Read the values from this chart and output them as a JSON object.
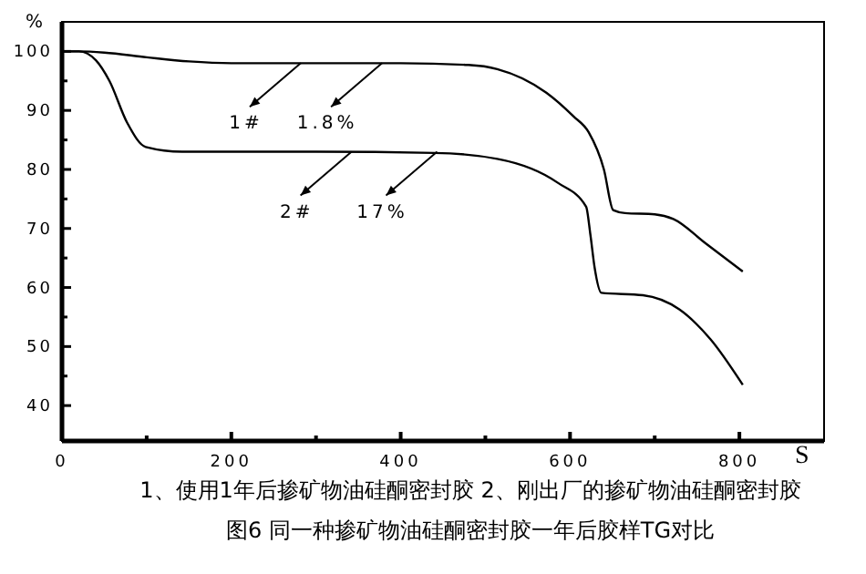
{
  "chart_data": {
    "type": "line",
    "title": "图6 同一种掺矿物油硅酮密封胶一年后胶样TG对比",
    "xlabel": "S",
    "ylabel": "%",
    "xlim": [
      0,
      900
    ],
    "ylim": [
      34,
      105
    ],
    "xticks": [
      0,
      {
        "value": 100,
        "label": null
      },
      200,
      {
        "value": 300,
        "label": null
      },
      400,
      {
        "value": 500,
        "label": null
      },
      600,
      {
        "value": 700,
        "label": null
      },
      800
    ],
    "yticks": [
      40,
      {
        "value": 45,
        "label": null
      },
      50,
      {
        "value": 55,
        "label": null
      },
      60,
      {
        "value": 65,
        "label": null
      },
      70,
      {
        "value": 75,
        "label": null
      },
      80,
      {
        "value": 85,
        "label": null
      },
      90,
      {
        "value": 95,
        "label": null
      },
      100
    ],
    "grid": false,
    "marker": "none",
    "line_style": "solid",
    "series": [
      {
        "color": "#000000",
        "x": [
          0,
          20,
          50,
          100,
          150,
          200,
          300,
          400,
          480,
          514,
          572,
          604,
          622,
          640,
          651,
          665,
          700,
          722,
          760,
          804
        ],
        "values": [
          100,
          100,
          99.8,
          99,
          98.3,
          98,
          98,
          98,
          97.7,
          97,
          93,
          89,
          86.3,
          80,
          73.1,
          72.6,
          72.4,
          71.6,
          67.5,
          62.7
        ]
      },
      {
        "color": "#000000",
        "x": [
          0,
          20,
          40,
          56,
          77,
          99,
          142,
          200,
          300,
          440,
          514,
          586,
          619,
          624,
          629,
          637,
          686,
          729,
          766,
          804
        ],
        "values": [
          100,
          100,
          98.5,
          95,
          87.9,
          83.8,
          83,
          83,
          83,
          82.8,
          81.8,
          77.7,
          73.7,
          69,
          63.4,
          59.1,
          58.7,
          56.3,
          51.2,
          43.5
        ]
      }
    ],
    "annotations": [
      {
        "text": "1#",
        "x": 282,
        "y": 98
      },
      {
        "text": "1.8%",
        "x": 378,
        "y": 98
      },
      {
        "text": "2#",
        "x": 342,
        "y": 83
      },
      {
        "text": "17%",
        "x": 443,
        "y": 83
      },
      "1、使用1年后掺矿物油硅酮密封胶 2、刚出厂的掺矿物油硅酮密封胶"
    ]
  }
}
